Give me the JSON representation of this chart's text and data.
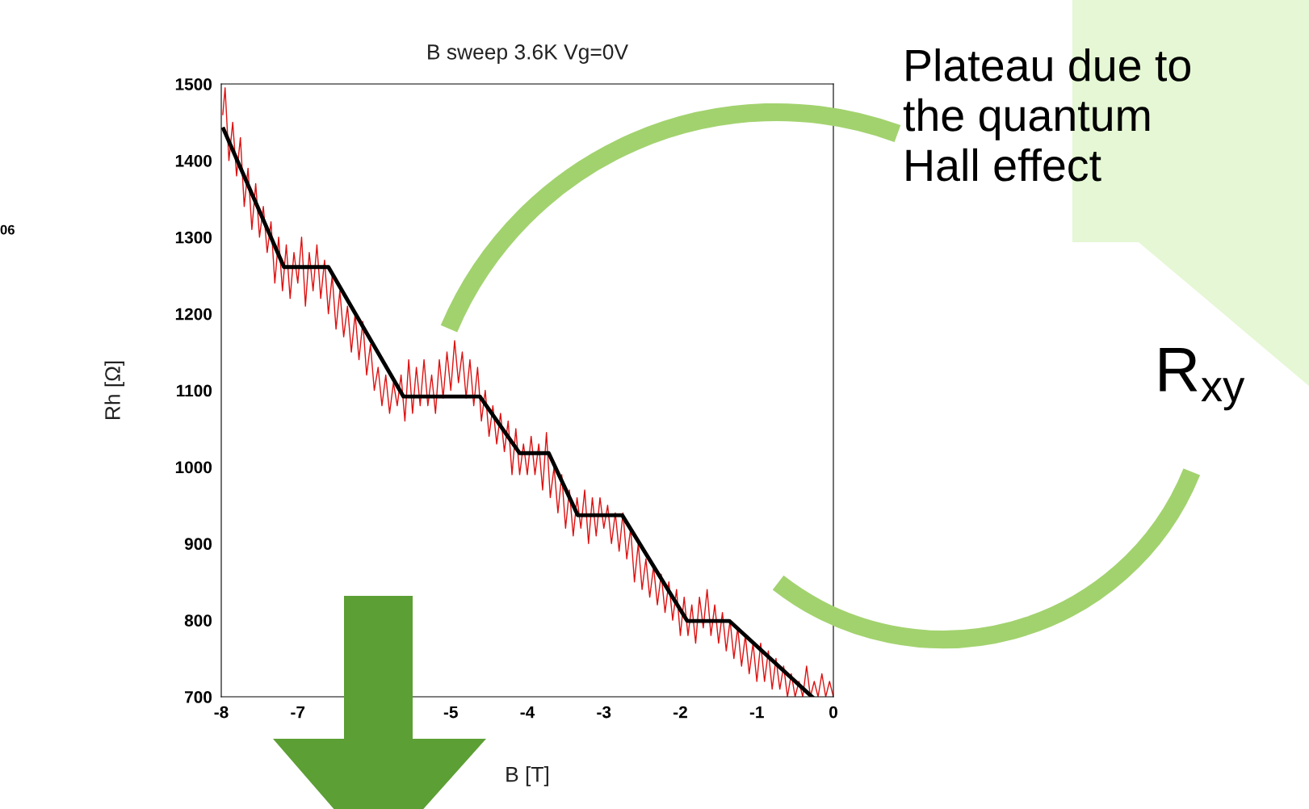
{
  "chart_data": {
    "type": "line",
    "title": "B sweep 3.6K Vg=0V",
    "xlabel": "B [T]",
    "ylabel": "Rh [Ω]",
    "xlim": [
      -8,
      0
    ],
    "xticks": [
      -8,
      -7,
      -5,
      -4,
      -3,
      -2,
      -1,
      0
    ],
    "ylim": [
      700,
      1500
    ],
    "yticks": [
      700,
      800,
      900,
      1000,
      1100,
      1200,
      1300,
      1400,
      1500
    ],
    "grid": false,
    "marker": "none",
    "line_style": "solid",
    "annotations": [
      "Plateau due to\nthe quantum\nHall effect",
      "R$_{xy}$",
      "06"
    ],
    "series": [
      {
        "color": "#dd1111",
        "x": [
          -7.98,
          -7.95,
          -7.9,
          -7.85,
          -7.8,
          -7.75,
          -7.7,
          -7.65,
          -7.6,
          -7.55,
          -7.5,
          -7.45,
          -7.4,
          -7.35,
          -7.3,
          -7.25,
          -7.2,
          -7.15,
          -7.1,
          -7.05,
          -7.0,
          -6.95,
          -6.9,
          -6.85,
          -6.8,
          -6.75,
          -6.7,
          -6.65,
          -6.6,
          -6.55,
          -6.5,
          -6.45,
          -6.4,
          -6.35,
          -6.3,
          -6.25,
          -6.2,
          -6.15,
          -6.1,
          -6.05,
          -6.0,
          -5.95,
          -5.9,
          -5.85,
          -5.8,
          -5.75,
          -5.7,
          -5.65,
          -5.6,
          -5.55,
          -5.5,
          -5.45,
          -5.4,
          -5.35,
          -5.3,
          -5.25,
          -5.2,
          -5.15,
          -5.1,
          -5.05,
          -5.0,
          -4.95,
          -4.9,
          -4.85,
          -4.8,
          -4.75,
          -4.7,
          -4.65,
          -4.6,
          -4.55,
          -4.5,
          -4.45,
          -4.4,
          -4.35,
          -4.3,
          -4.25,
          -4.2,
          -4.15,
          -4.1,
          -4.05,
          -4.0,
          -3.95,
          -3.9,
          -3.85,
          -3.8,
          -3.75,
          -3.7,
          -3.65,
          -3.6,
          -3.55,
          -3.5,
          -3.45,
          -3.4,
          -3.35,
          -3.3,
          -3.25,
          -3.2,
          -3.15,
          -3.1,
          -3.05,
          -3.0,
          -2.95,
          -2.9,
          -2.85,
          -2.8,
          -2.75,
          -2.7,
          -2.65,
          -2.6,
          -2.55,
          -2.5,
          -2.45,
          -2.4,
          -2.35,
          -2.3,
          -2.25,
          -2.2,
          -2.15,
          -2.1,
          -2.05,
          -2.0,
          -1.95,
          -1.9,
          -1.85,
          -1.8,
          -1.75,
          -1.7,
          -1.65,
          -1.6,
          -1.55,
          -1.5,
          -1.45,
          -1.4,
          -1.35,
          -1.3,
          -1.25,
          -1.2,
          -1.15,
          -1.1,
          -1.05,
          -1.0,
          -0.95,
          -0.9,
          -0.85,
          -0.8,
          -0.75,
          -0.7,
          -0.65,
          -0.6,
          -0.55,
          -0.5,
          -0.45,
          -0.4,
          -0.35,
          -0.3,
          -0.25,
          -0.2,
          -0.15,
          -0.1,
          -0.05,
          0.0
        ],
        "values": [
          1460,
          1495,
          1400,
          1450,
          1380,
          1430,
          1340,
          1390,
          1310,
          1370,
          1300,
          1340,
          1280,
          1320,
          1240,
          1300,
          1230,
          1290,
          1220,
          1280,
          1240,
          1300,
          1210,
          1280,
          1230,
          1290,
          1220,
          1270,
          1200,
          1250,
          1180,
          1230,
          1170,
          1210,
          1150,
          1200,
          1140,
          1190,
          1120,
          1160,
          1100,
          1130,
          1080,
          1120,
          1070,
          1110,
          1080,
          1120,
          1060,
          1140,
          1070,
          1130,
          1080,
          1140,
          1080,
          1120,
          1070,
          1140,
          1090,
          1150,
          1100,
          1165,
          1110,
          1150,
          1090,
          1140,
          1080,
          1130,
          1060,
          1100,
          1040,
          1080,
          1030,
          1070,
          1020,
          1060,
          990,
          1050,
          990,
          1030,
          990,
          1040,
          990,
          1030,
          970,
          1045,
          960,
          1000,
          940,
          990,
          920,
          970,
          910,
          960,
          920,
          970,
          900,
          960,
          910,
          960,
          920,
          950,
          900,
          940,
          890,
          940,
          880,
          920,
          850,
          900,
          840,
          880,
          830,
          870,
          820,
          860,
          810,
          850,
          800,
          840,
          780,
          830,
          780,
          820,
          770,
          830,
          790,
          840,
          780,
          820,
          770,
          810,
          760,
          800,
          750,
          790,
          740,
          780,
          730,
          770,
          720,
          770,
          720,
          760,
          710,
          750,
          710,
          740,
          700,
          730,
          700,
          720,
          700,
          740,
          700,
          720,
          700,
          730,
          700,
          720,
          700
        ]
      },
      {
        "color": "#000000",
        "x": [
          -7.97,
          -7.18,
          -6.6,
          -5.62,
          -4.62,
          -4.1,
          -3.72,
          -3.34,
          -2.76,
          -1.91,
          -1.36,
          -0.28
        ],
        "values": [
          1441,
          1261,
          1261,
          1092,
          1092,
          1018,
          1018,
          937,
          937,
          799,
          799,
          700
        ]
      }
    ]
  }
}
